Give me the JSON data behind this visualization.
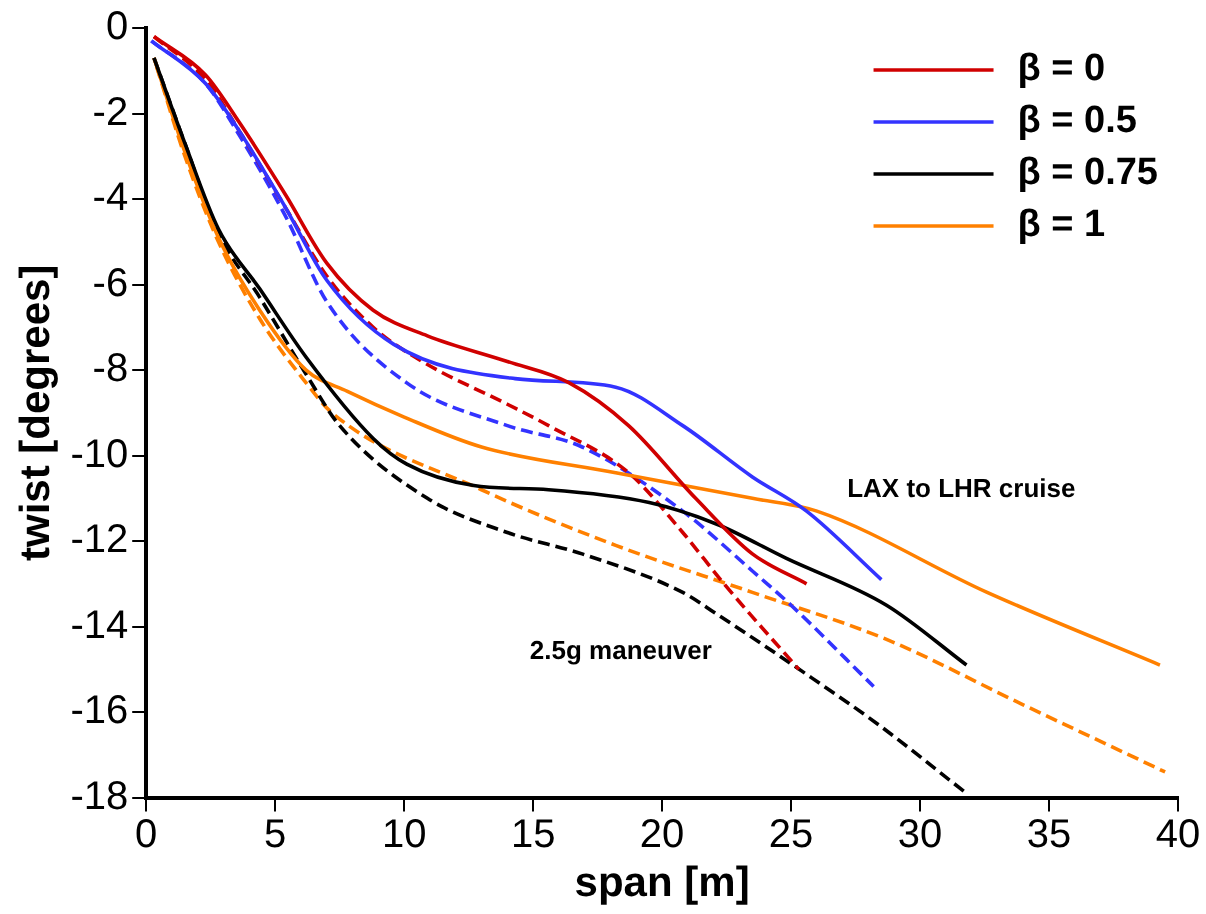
{
  "chart_data": {
    "type": "line",
    "xlabel": "span [m]",
    "ylabel": "twist [degrees]",
    "xlim": [
      0,
      40
    ],
    "xticks": [
      0,
      5,
      10,
      15,
      20,
      25,
      30,
      35,
      40
    ],
    "ylim": [
      -18,
      0
    ],
    "yticks": [
      -18,
      -16,
      -14,
      -12,
      -10,
      -8,
      -6,
      -4,
      -2,
      0
    ],
    "grid": false,
    "legend": "top right",
    "marker": "none",
    "series": [
      {
        "name": "β = 0",
        "color": "#d00000",
        "line_style": "solid",
        "x": [
          0.3,
          2.3,
          3.6,
          5.4,
          7.0,
          8.8,
          10.9,
          14.0,
          16.4,
          18.7,
          21.3,
          23.5,
          25.6
        ],
        "values": [
          -0.2,
          -1.1,
          -2.2,
          -3.9,
          -5.5,
          -6.6,
          -7.2,
          -7.8,
          -8.3,
          -9.3,
          -11.0,
          -12.3,
          -13.0
        ]
      },
      {
        "name": "β = 0.5",
        "color": "#3333ff",
        "line_style": "solid",
        "x": [
          0.2,
          2.3,
          3.6,
          5.4,
          7.0,
          9.6,
          14.3,
          18.2,
          20.8,
          23.5,
          25.6,
          28.5
        ],
        "values": [
          -0.3,
          -1.3,
          -2.4,
          -4.2,
          -5.9,
          -7.4,
          -8.2,
          -8.4,
          -9.3,
          -10.5,
          -11.3,
          -12.9
        ]
      },
      {
        "name": "β = 0.75",
        "color": "#000000",
        "line_style": "solid",
        "x": [
          0.3,
          1.5,
          2.8,
          4.4,
          6.2,
          8.8,
          10.1,
          12.7,
          15.6,
          19.5,
          22.1,
          24.8,
          28.7,
          31.8
        ],
        "values": [
          -0.7,
          -2.7,
          -4.7,
          -6.1,
          -7.7,
          -9.6,
          -10.2,
          -10.7,
          -10.8,
          -11.1,
          -11.6,
          -12.4,
          -13.5,
          -14.9
        ]
      },
      {
        "name": "β = 1",
        "color": "#ff8000",
        "line_style": "solid",
        "x": [
          0.3,
          1.5,
          2.8,
          4.4,
          6.2,
          7.8,
          10.0,
          13.0,
          18.2,
          23.5,
          26.0,
          32.6,
          39.3
        ],
        "values": [
          -0.7,
          -2.9,
          -4.9,
          -6.6,
          -8.0,
          -8.5,
          -9.1,
          -9.8,
          -10.4,
          -11.0,
          -11.3,
          -13.2,
          -14.9
        ]
      },
      {
        "color": "#d00000",
        "line_style": "dashed",
        "x": [
          0.3,
          2.3,
          3.6,
          5.4,
          7.0,
          8.8,
          10.7,
          14.0,
          15.6,
          18.7,
          20.8,
          22.4,
          25.3
        ],
        "values": [
          -0.2,
          -1.2,
          -2.4,
          -4.2,
          -5.8,
          -7.0,
          -7.8,
          -8.8,
          -9.3,
          -10.4,
          -11.8,
          -13.0,
          -15.0
        ]
      },
      {
        "color": "#3333ff",
        "line_style": "dashed",
        "x": [
          0.2,
          2.3,
          3.6,
          5.4,
          7.0,
          10.1,
          14.0,
          16.9,
          20.8,
          23.5,
          25.0,
          28.2
        ],
        "values": [
          -0.3,
          -1.3,
          -2.5,
          -4.4,
          -6.4,
          -8.3,
          -9.3,
          -9.8,
          -11.3,
          -12.7,
          -13.5,
          -15.4
        ]
      },
      {
        "color": "#000000",
        "line_style": "dashed",
        "x": [
          0.3,
          1.5,
          2.8,
          4.4,
          6.2,
          7.5,
          10.9,
          14.0,
          16.9,
          20.8,
          22.1,
          25.8,
          28.4,
          31.8
        ],
        "values": [
          -0.7,
          -2.7,
          -4.8,
          -6.3,
          -8.1,
          -9.3,
          -11.0,
          -11.8,
          -12.3,
          -13.2,
          -13.7,
          -15.2,
          -16.3,
          -17.9
        ]
      },
      {
        "color": "#ff8000",
        "line_style": "dashed",
        "x": [
          0.4,
          1.5,
          2.8,
          4.4,
          6.2,
          7.2,
          13.0,
          18.2,
          23.5,
          28.7,
          33.9,
          39.5
        ],
        "values": [
          -0.9,
          -3.0,
          -5.0,
          -6.8,
          -8.3,
          -9.0,
          -10.8,
          -12.1,
          -13.2,
          -14.3,
          -15.8,
          -17.4
        ]
      }
    ],
    "annotations": [
      "LAX to LHR cruise",
      "2.5g maneuver"
    ]
  }
}
